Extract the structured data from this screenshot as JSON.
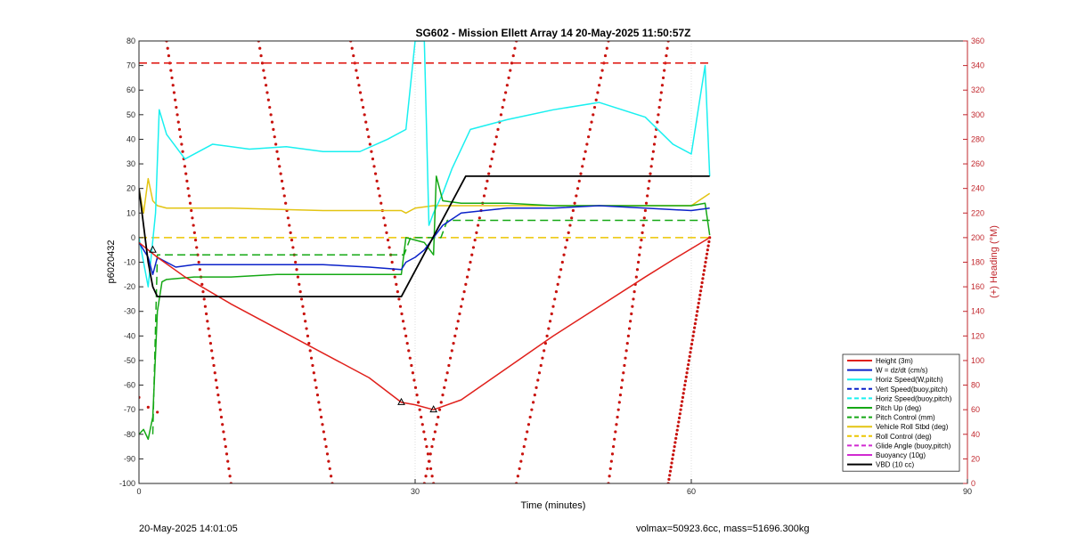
{
  "footer": {
    "left": "20-May-2025 14:01:05",
    "right": "volmax=50923.6cc, mass=51696.300kg"
  },
  "chart_data": {
    "type": "line",
    "title": "SG602 - Mission Ellett Array 14 20-May-2025 11:50:57Z",
    "xlabel": "Time (minutes)",
    "ylabel": "p6020432",
    "ylabel_right": "(+) Heading (°M)",
    "xlim": [
      0,
      90
    ],
    "ylim": [
      -100,
      80
    ],
    "ylim_right": [
      0,
      360
    ],
    "xticks": [
      0,
      30,
      60,
      90
    ],
    "yticks": [
      -100,
      -90,
      -80,
      -70,
      -60,
      -50,
      -40,
      -30,
      -20,
      -10,
      0,
      10,
      20,
      30,
      40,
      50,
      60,
      70,
      80
    ],
    "yticks_right": [
      0,
      20,
      40,
      60,
      80,
      100,
      120,
      140,
      160,
      180,
      200,
      220,
      240,
      260,
      280,
      300,
      320,
      340,
      360
    ],
    "grid": "x-only",
    "legend_position": "bottom-right",
    "colors": {
      "height": "#e0201b",
      "w": "#0b22c9",
      "horiz": "#19f0f0",
      "pitch": "#15a815",
      "roll": "#e3c412",
      "roll_ctrl": "#ecc500",
      "glide": "#d12ad1",
      "buoyancy": "#d12ad1",
      "vbd": "#000000",
      "heading": "#c8120d",
      "limit": "#e0201b",
      "axis_right": "#c1272d"
    },
    "series": [
      {
        "key": "height",
        "name": "Height (3m)",
        "style": "solid",
        "color": "#e0201b",
        "x": [
          0,
          1,
          2,
          5,
          10,
          15,
          20,
          25,
          28.5,
          30,
          32,
          35,
          40,
          45,
          50,
          55,
          58,
          62
        ],
        "y": [
          -2,
          -5,
          -8,
          -16,
          -27,
          -37,
          -47,
          -57,
          -67,
          -68,
          -70,
          -66,
          -53,
          -40,
          -28,
          -16,
          -9,
          0
        ]
      },
      {
        "key": "w",
        "name": "W = dz/dt (cm/s)",
        "style": "solid",
        "color": "#0b22c9",
        "x": [
          0,
          0.5,
          1,
          1.5,
          2,
          3,
          4,
          6,
          10,
          15,
          20,
          25,
          28.5,
          29,
          30,
          31,
          32,
          33,
          35,
          40,
          45,
          50,
          55,
          60,
          62
        ],
        "y": [
          -2,
          -5,
          -8,
          -15,
          -8,
          -10,
          -12,
          -11,
          -11,
          -11,
          -11,
          -12,
          -13,
          -10,
          -8,
          -5,
          0,
          5,
          10,
          12,
          12,
          13,
          12,
          11,
          12
        ]
      },
      {
        "key": "horiz",
        "name": "Horiz Speed(W,pitch)",
        "style": "solid",
        "color": "#19f0f0",
        "x": [
          0,
          1,
          1.8,
          2.2,
          3,
          5,
          8,
          12,
          16,
          20,
          24,
          27,
          29,
          30,
          31,
          31.5,
          32,
          33,
          34,
          36,
          40,
          45,
          50,
          55,
          58,
          60,
          61.5,
          62
        ],
        "y": [
          0,
          -20,
          10,
          52,
          42,
          32,
          38,
          36,
          37,
          35,
          35,
          40,
          44,
          80,
          80,
          5,
          10,
          18,
          28,
          44,
          48,
          52,
          55,
          49,
          38,
          34,
          70,
          25
        ]
      },
      {
        "key": "vert_buoy",
        "name": "Vert Speed(buoy,pitch)",
        "style": "dashed",
        "color": "#0b22c9",
        "x": [],
        "y": []
      },
      {
        "key": "horiz_buoy",
        "name": "Horiz Speed(buoy,pitch)",
        "style": "dashed",
        "color": "#19f0f0",
        "x": [],
        "y": []
      },
      {
        "key": "pitch",
        "name": "Pitch Up (deg)",
        "style": "solid",
        "color": "#15a815",
        "x": [
          0,
          0.5,
          1,
          1.5,
          2,
          2.5,
          3,
          6,
          10,
          15,
          20,
          25,
          28.5,
          29,
          31,
          32,
          32.3,
          33,
          35,
          40,
          45,
          50,
          55,
          60,
          61.5,
          62
        ],
        "y": [
          -80,
          -78,
          -82,
          -73,
          -30,
          -18,
          -17,
          -16,
          -16,
          -15,
          -15,
          -15,
          -15,
          0,
          -2,
          -7,
          25,
          15,
          14,
          14,
          13,
          13,
          13,
          13,
          14,
          1
        ]
      },
      {
        "key": "pitch_ctrl",
        "name": "Pitch Control (mm)",
        "style": "dashed",
        "color": "#15a815",
        "x": [
          1.5,
          2,
          28.8,
          29.5,
          32.8,
          33.5,
          62
        ],
        "y": [
          -80,
          -7,
          -7,
          0,
          0,
          7,
          7
        ]
      },
      {
        "key": "roll",
        "name": "Vehicle Roll Stbd (deg)",
        "style": "solid",
        "color": "#e3c412",
        "x": [
          0,
          0.5,
          1,
          1.5,
          2,
          3,
          5,
          10,
          20,
          28.5,
          29,
          30,
          32,
          40,
          50,
          60,
          62
        ],
        "y": [
          20,
          10,
          24,
          15,
          13,
          12,
          12,
          12,
          11,
          11,
          10,
          12,
          13,
          13,
          13,
          13,
          18
        ]
      },
      {
        "key": "roll_ctrl",
        "name": "Roll Control (deg)",
        "style": "dashed",
        "color": "#ecc500",
        "x": [
          0,
          62
        ],
        "y": [
          0,
          0
        ]
      },
      {
        "key": "glide",
        "name": "Glide Angle (buoy,pitch)",
        "style": "dashed",
        "color": "#d12ad1",
        "x": [],
        "y": []
      },
      {
        "key": "buoyancy",
        "name": "Buoyancy (10g)",
        "style": "solid",
        "color": "#d12ad1",
        "x": [],
        "y": []
      },
      {
        "key": "vbd",
        "name": "VBD (10 cc)",
        "style": "solid",
        "color": "#000000",
        "x": [
          0,
          1,
          1.5,
          2,
          28.5,
          35.5,
          62
        ],
        "y": [
          20,
          -10,
          -20,
          -24,
          -24,
          25,
          25
        ]
      }
    ],
    "reference_lines": [
      {
        "style": "dashed",
        "color": "#e0201b",
        "x": [
          0,
          62
        ],
        "y": [
          71,
          71
        ]
      }
    ],
    "markers": {
      "symbol": "triangle",
      "x": [
        1.5,
        28.5,
        32
      ],
      "y": [
        -5,
        -67,
        -70
      ]
    },
    "heading": {
      "axis": "right",
      "style": "dotted",
      "x": [
        0,
        1,
        2
      ],
      "y": [
        70,
        62,
        58
      ],
      "sweeps": [
        {
          "x": [
            3,
            10
          ],
          "y": [
            360,
            0
          ]
        },
        {
          "x": [
            13,
            21
          ],
          "y": [
            360,
            0
          ]
        },
        {
          "x": [
            23,
            32
          ],
          "y": [
            360,
            0
          ]
        },
        {
          "x": [
            31,
            41
          ],
          "y": [
            0,
            360
          ]
        },
        {
          "x": [
            41,
            51
          ],
          "y": [
            0,
            360
          ]
        },
        {
          "x": [
            51,
            57.5
          ],
          "y": [
            0,
            360
          ]
        },
        {
          "x": [
            57.5,
            62
          ],
          "y": [
            0,
            200
          ]
        }
      ]
    }
  }
}
